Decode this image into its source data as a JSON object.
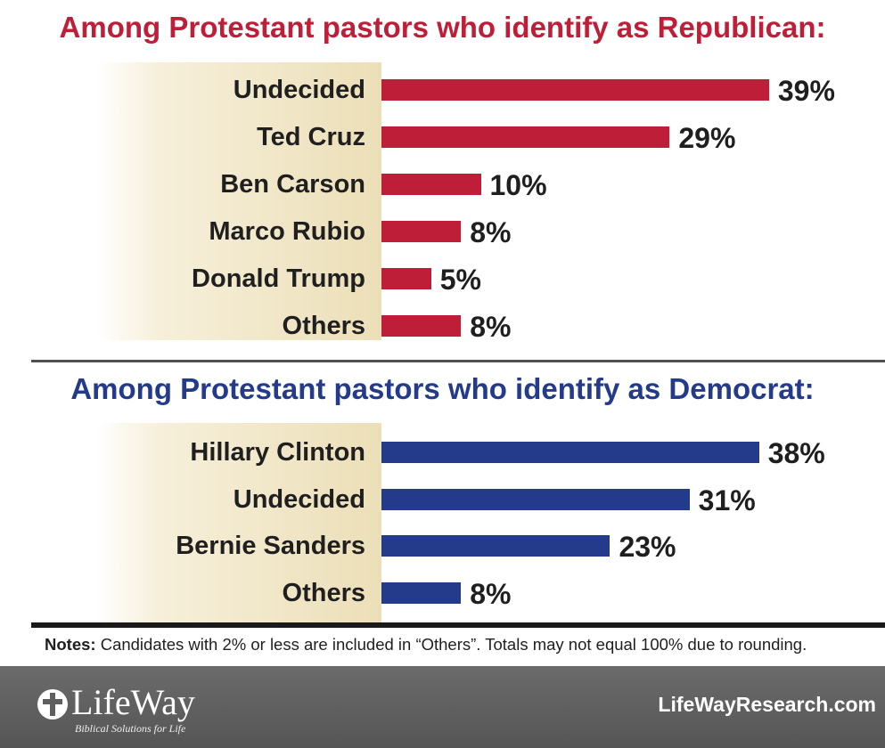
{
  "chart_data": [
    {
      "type": "bar",
      "orientation": "horizontal",
      "title": "Among Protestant pastors who identify as Republican:",
      "categories": [
        "Undecided",
        "Ted Cruz",
        "Ben Carson",
        "Marco Rubio",
        "Donald Trump",
        "Others"
      ],
      "values": [
        39,
        29,
        10,
        8,
        5,
        8
      ],
      "value_labels": [
        "39%",
        "29%",
        "10%",
        "8%",
        "5%",
        "8%"
      ],
      "unit": "%",
      "color": "#be1e37",
      "xlim": [
        0,
        39
      ]
    },
    {
      "type": "bar",
      "orientation": "horizontal",
      "title": "Among Protestant pastors who identify as Democrat:",
      "categories": [
        "Hillary Clinton",
        "Undecided",
        "Bernie Sanders",
        "Others"
      ],
      "values": [
        38,
        31,
        23,
        8
      ],
      "value_labels": [
        "38%",
        "31%",
        "23%",
        "8%"
      ],
      "unit": "%",
      "color": "#243a8a",
      "xlim": [
        0,
        39
      ]
    }
  ],
  "notes": {
    "label": "Notes:",
    "text": " Candidates with 2% or less are included in “Others”. Totals may not equal 100% due to rounding."
  },
  "footer": {
    "logo_text": "LifeWay",
    "tagline": "Biblical Solutions for Life",
    "website": "LifeWayResearch.com"
  },
  "colors": {
    "republican": "#be1e37",
    "democrat": "#243a8a",
    "footer_bg": "#5f5f5f"
  }
}
